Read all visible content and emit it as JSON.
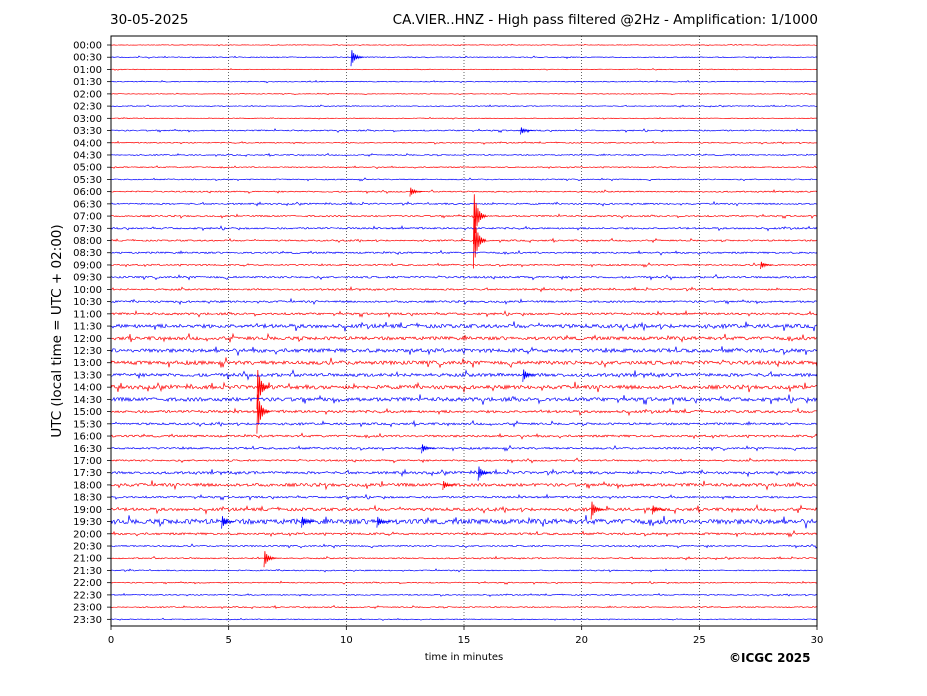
{
  "header": {
    "date": "30-05-2025",
    "station_title": "CA.VIER..HNZ - High pass filtered @2Hz - Amplification: 1/1000"
  },
  "footer": {
    "copyright": "©ICGC 2025"
  },
  "colors": {
    "red_trace": "#ff0000",
    "blue_trace": "#0000ff",
    "grid": "#000000"
  },
  "chart_data": {
    "type": "line",
    "title": "CA.VIER..HNZ - High pass filtered @2Hz - Amplification: 1/1000",
    "xlabel": "time in minutes",
    "ylabel": "UTC (local time = UTC + 02:00)",
    "xlim": [
      0,
      30
    ],
    "x_ticks": [
      0,
      5,
      10,
      15,
      20,
      25,
      30
    ],
    "x_tick_labels": [
      "0",
      "5",
      "10",
      "15",
      "20",
      "25",
      "30"
    ],
    "rows": [
      "00:00",
      "00:30",
      "01:00",
      "01:30",
      "02:00",
      "02:30",
      "03:00",
      "03:30",
      "04:00",
      "04:30",
      "05:00",
      "05:30",
      "06:00",
      "06:30",
      "07:00",
      "07:30",
      "08:00",
      "08:30",
      "09:00",
      "09:30",
      "10:00",
      "10:30",
      "11:00",
      "11:30",
      "12:00",
      "12:30",
      "13:00",
      "13:30",
      "14:00",
      "14:30",
      "15:00",
      "15:30",
      "16:00",
      "16:30",
      "17:00",
      "17:30",
      "18:00",
      "18:30",
      "19:00",
      "19:30",
      "20:00",
      "20:30",
      "21:00",
      "21:30",
      "22:00",
      "22:30",
      "23:00",
      "23:30"
    ],
    "trace_colors": [
      "red",
      "blue",
      "red",
      "blue",
      "red",
      "blue",
      "red",
      "blue",
      "red",
      "blue",
      "red",
      "blue",
      "red",
      "blue",
      "red",
      "blue",
      "red",
      "blue",
      "red",
      "blue",
      "red",
      "blue",
      "red",
      "blue",
      "red",
      "blue",
      "red",
      "blue",
      "red",
      "blue",
      "red",
      "blue",
      "red",
      "blue",
      "red",
      "blue",
      "red",
      "blue",
      "red",
      "blue",
      "red",
      "blue",
      "red",
      "blue",
      "red",
      "blue",
      "red",
      "blue"
    ],
    "noise_level": [
      0.3,
      0.4,
      0.3,
      0.4,
      0.3,
      0.4,
      0.3,
      0.6,
      0.5,
      0.5,
      0.5,
      0.5,
      0.6,
      0.7,
      0.7,
      0.8,
      0.7,
      0.8,
      0.7,
      0.9,
      0.8,
      0.9,
      1.0,
      1.8,
      1.6,
      1.8,
      1.8,
      1.6,
      1.8,
      1.8,
      1.2,
      1.0,
      1.0,
      0.9,
      0.8,
      1.2,
      1.5,
      0.9,
      1.4,
      2.4,
      1.0,
      0.7,
      0.6,
      0.5,
      0.5,
      0.5,
      0.5,
      0.4
    ],
    "events": [
      {
        "row": "00:30",
        "x": 10.2,
        "amp": 9
      },
      {
        "row": "03:30",
        "x": 17.4,
        "amp": 4
      },
      {
        "row": "06:00",
        "x": 12.7,
        "amp": 5
      },
      {
        "row": "07:00",
        "x": 15.4,
        "amp": 28
      },
      {
        "row": "08:00",
        "x": 15.4,
        "amp": 28
      },
      {
        "row": "09:00",
        "x": 27.6,
        "amp": 4
      },
      {
        "row": "13:30",
        "x": 17.5,
        "amp": 7
      },
      {
        "row": "14:00",
        "x": 6.2,
        "amp": 22
      },
      {
        "row": "15:00",
        "x": 6.2,
        "amp": 22
      },
      {
        "row": "16:30",
        "x": 13.2,
        "amp": 5
      },
      {
        "row": "17:30",
        "x": 15.6,
        "amp": 8
      },
      {
        "row": "18:00",
        "x": 14.1,
        "amp": 5
      },
      {
        "row": "19:00",
        "x": 20.4,
        "amp": 10
      },
      {
        "row": "19:00",
        "x": 23.0,
        "amp": 5
      },
      {
        "row": "19:30",
        "x": 4.7,
        "amp": 7
      },
      {
        "row": "19:30",
        "x": 8.1,
        "amp": 6
      },
      {
        "row": "19:30",
        "x": 11.3,
        "amp": 6
      },
      {
        "row": "21:00",
        "x": 6.5,
        "amp": 9
      }
    ]
  }
}
